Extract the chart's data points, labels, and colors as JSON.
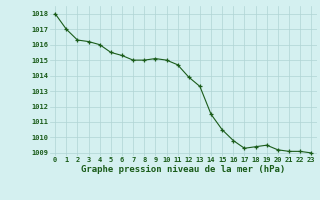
{
  "hours": [
    0,
    1,
    2,
    3,
    4,
    5,
    6,
    7,
    8,
    9,
    10,
    11,
    12,
    13,
    14,
    15,
    16,
    17,
    18,
    19,
    20,
    21,
    22,
    23
  ],
  "pressure": [
    1018.0,
    1017.0,
    1016.3,
    1016.2,
    1016.0,
    1015.5,
    1015.3,
    1015.0,
    1015.0,
    1015.1,
    1015.0,
    1014.7,
    1013.9,
    1013.3,
    1011.5,
    1010.5,
    1009.8,
    1009.3,
    1009.4,
    1009.5,
    1009.2,
    1009.1,
    1009.1,
    1009.0
  ],
  "ylim_min": 1008.8,
  "ylim_max": 1018.5,
  "yticks": [
    1009,
    1010,
    1011,
    1012,
    1013,
    1014,
    1015,
    1016,
    1017,
    1018
  ],
  "line_color": "#1a5c1a",
  "marker_color": "#1a5c1a",
  "bg_color": "#d4f0f0",
  "grid_color": "#b0d4d4",
  "xlabel": "Graphe pression niveau de la mer (hPa)",
  "xlabel_color": "#1a5c1a",
  "tick_color": "#1a5c1a"
}
